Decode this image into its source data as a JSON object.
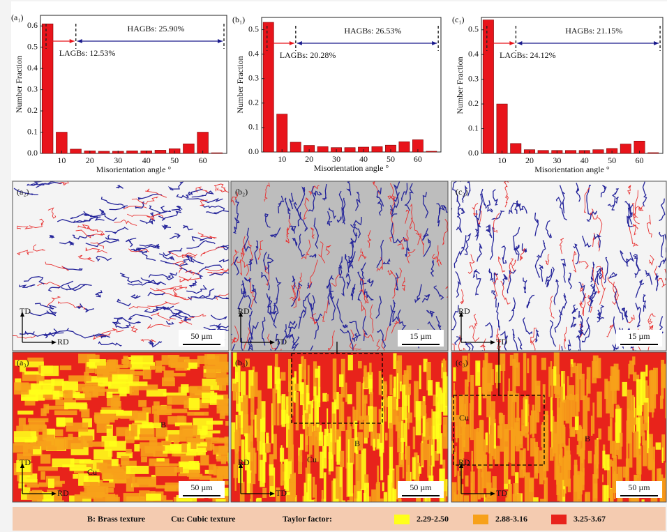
{
  "chart_data": [
    {
      "type": "bar",
      "panel_label": "(a₁)",
      "annotations": [
        "HAGBs: 25.90%",
        "LAGBs: 12.53%"
      ],
      "x_label": "Misorientation angle °",
      "y_label": "Number Fraction",
      "color": "#e8141b",
      "x": [
        5,
        10,
        15,
        20,
        25,
        30,
        35,
        40,
        45,
        50,
        55,
        60,
        65
      ],
      "values": [
        0.61,
        0.1,
        0.02,
        0.012,
        0.01,
        0.01,
        0.012,
        0.012,
        0.015,
        0.022,
        0.045,
        0.1,
        0.003
      ],
      "xlim": [
        2.5,
        68.5
      ],
      "xticks": [
        10,
        20,
        30,
        40,
        50,
        60
      ],
      "ylim": [
        0,
        0.65
      ],
      "yticks": [
        {
          "value": 0,
          "label": "0.0"
        },
        0.1,
        0.2,
        0.3,
        0.4,
        0.5,
        0.6
      ]
    },
    {
      "type": "bar",
      "panel_label": "(b₁)",
      "annotations": [
        "HAGBs: 26.53%",
        "LAGBs: 20.28%"
      ],
      "x_label": "Misorientation angle °",
      "y_label": "Number Fraction",
      "color": "#e8141b",
      "x": [
        5,
        10,
        15,
        20,
        25,
        30,
        35,
        40,
        45,
        50,
        55,
        60,
        65
      ],
      "values": [
        0.53,
        0.155,
        0.04,
        0.027,
        0.022,
        0.018,
        0.018,
        0.02,
        0.022,
        0.028,
        0.042,
        0.05,
        0.003
      ],
      "xlim": [
        2.5,
        68.5
      ],
      "xticks": [
        10,
        20,
        30,
        40,
        50,
        60
      ],
      "ylim": [
        0,
        0.55
      ],
      "yticks": [
        {
          "value": 0,
          "label": "0.0"
        },
        0.1,
        0.2,
        0.3,
        0.4,
        0.5
      ]
    },
    {
      "type": "bar",
      "panel_label": "(c₁)",
      "annotations": [
        "HAGBs: 21.15%",
        "LAGBs: 24.12%"
      ],
      "x_label": "Misorientation angle °",
      "y_label": "Number Fraction",
      "color": "#e8141b",
      "x": [
        5,
        10,
        15,
        20,
        25,
        30,
        35,
        40,
        45,
        50,
        55,
        60,
        65
      ],
      "values": [
        0.54,
        0.2,
        0.04,
        0.015,
        0.012,
        0.012,
        0.012,
        0.012,
        0.015,
        0.02,
        0.038,
        0.05,
        0.003
      ],
      "xlim": [
        2.5,
        68.5
      ],
      "xticks": [
        10,
        20,
        30,
        40,
        50,
        60
      ],
      "ylim": [
        0,
        0.55
      ],
      "yticks": [
        {
          "value": 0,
          "label": "0.0"
        },
        0.1,
        0.2,
        0.3,
        0.4,
        0.5
      ]
    }
  ],
  "maps": [
    {
      "label": "(a₂)",
      "axes": [
        "TD",
        "RD"
      ],
      "scale": "50 µm",
      "marks": []
    },
    {
      "label": "(b₂)",
      "axes": [
        "RD",
        "TD"
      ],
      "scale": "15 µm",
      "marks": []
    },
    {
      "label": "(c₂)",
      "axes": [
        "RD",
        "TD"
      ],
      "scale": "15 µm",
      "marks": []
    },
    {
      "label": "(a₃)",
      "axes": [
        "TD",
        "RD"
      ],
      "scale": "50 µm",
      "marks": [
        "B",
        "Cu"
      ]
    },
    {
      "label": "(b₃)",
      "axes": [
        "RD",
        "TD"
      ],
      "scale": "50 µm",
      "marks": [
        "Cu",
        "B"
      ]
    },
    {
      "label": "(c₃)",
      "axes": [
        "RD",
        "TD"
      ],
      "scale": "50 µm",
      "marks": [
        "Cu",
        "B"
      ]
    }
  ],
  "legend": {
    "items": [
      "B: Brass texture",
      "Cu: Cubic texture"
    ],
    "title": "Taylor factor:",
    "ranges": [
      {
        "label": "2.29-2.50",
        "color": "#ffff1a"
      },
      {
        "label": "2.88-3.16",
        "color": "#f7a11a"
      },
      {
        "label": "3.25-3.67",
        "color": "#e8231b"
      }
    ]
  }
}
